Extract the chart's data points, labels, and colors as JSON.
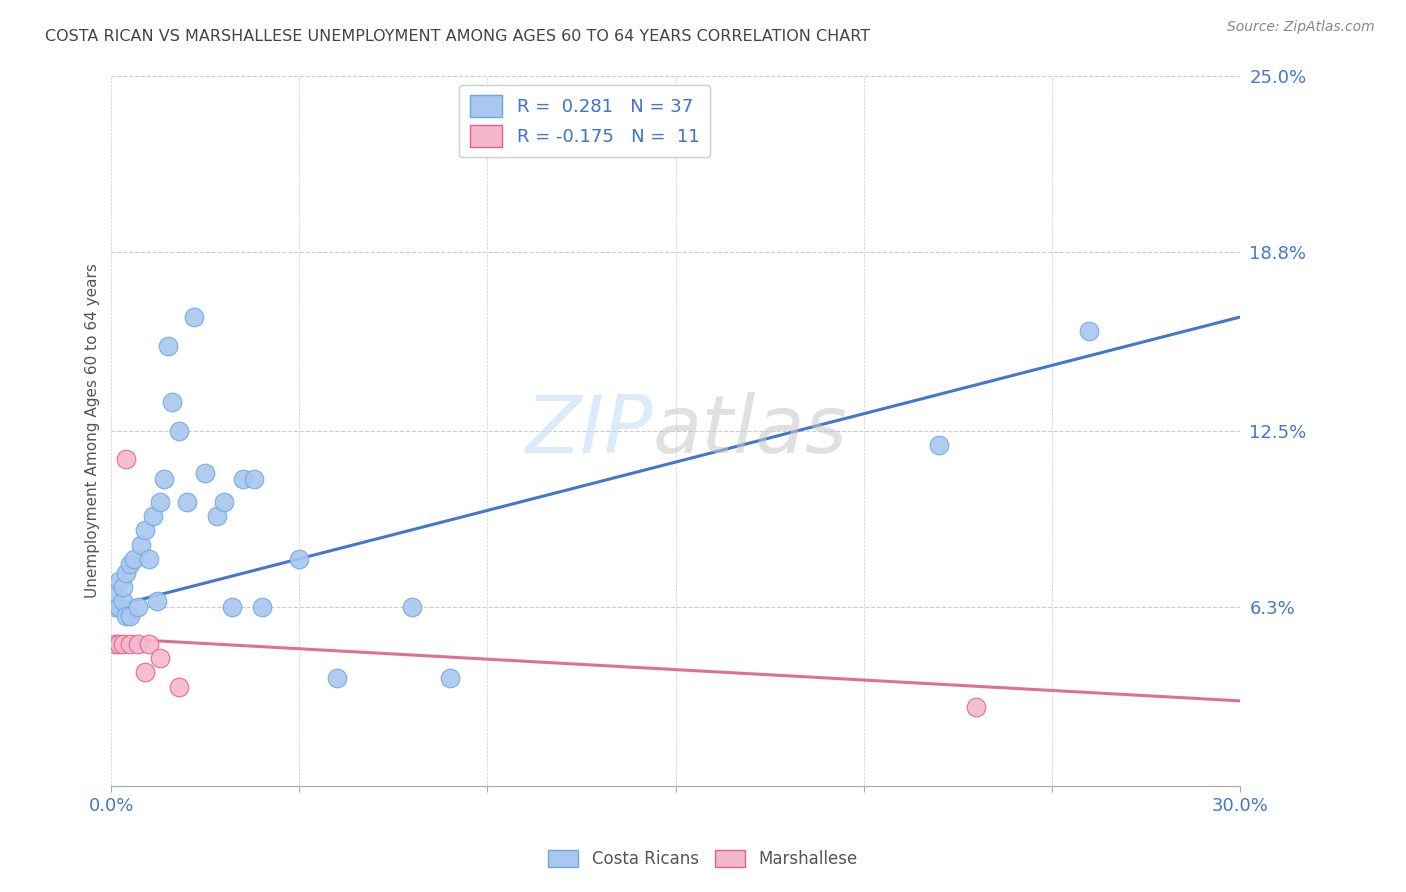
{
  "title": "COSTA RICAN VS MARSHALLESE UNEMPLOYMENT AMONG AGES 60 TO 64 YEARS CORRELATION CHART",
  "source": "Source: ZipAtlas.com",
  "ylabel": "Unemployment Among Ages 60 to 64 years",
  "xlim": [
    0,
    0.3
  ],
  "ylim": [
    0,
    0.25
  ],
  "xticks": [
    0.0,
    0.05,
    0.1,
    0.15,
    0.2,
    0.25,
    0.3
  ],
  "yticks": [
    0.0,
    0.063,
    0.125,
    0.188,
    0.25
  ],
  "ytick_labels": [
    "",
    "6.3%",
    "12.5%",
    "18.8%",
    "25.0%"
  ],
  "xtick_labels": [
    "0.0%",
    "",
    "",
    "",
    "",
    "",
    "30.0%"
  ],
  "blue_R": 0.281,
  "blue_N": 37,
  "pink_R": -0.175,
  "pink_N": 11,
  "blue_color": "#6fa8dc",
  "blue_fill": "#a8c8f0",
  "pink_color": "#e06090",
  "pink_fill": "#f4b8cc",
  "blue_line_color": "#4477cc",
  "pink_line_color": "#e07090",
  "costa_rican_x": [
    0.001,
    0.001,
    0.002,
    0.002,
    0.003,
    0.003,
    0.004,
    0.004,
    0.005,
    0.005,
    0.006,
    0.007,
    0.008,
    0.009,
    0.01,
    0.011,
    0.012,
    0.013,
    0.014,
    0.015,
    0.016,
    0.018,
    0.02,
    0.022,
    0.025,
    0.028,
    0.03,
    0.032,
    0.035,
    0.038,
    0.04,
    0.05,
    0.06,
    0.08,
    0.09,
    0.22,
    0.26
  ],
  "costa_rican_y": [
    0.063,
    0.068,
    0.063,
    0.072,
    0.065,
    0.07,
    0.06,
    0.075,
    0.06,
    0.078,
    0.08,
    0.063,
    0.085,
    0.09,
    0.08,
    0.095,
    0.065,
    0.1,
    0.108,
    0.155,
    0.135,
    0.125,
    0.1,
    0.165,
    0.11,
    0.095,
    0.1,
    0.063,
    0.108,
    0.108,
    0.063,
    0.08,
    0.038,
    0.063,
    0.038,
    0.12,
    0.16
  ],
  "marshallese_x": [
    0.001,
    0.002,
    0.003,
    0.004,
    0.005,
    0.007,
    0.009,
    0.01,
    0.013,
    0.018,
    0.23
  ],
  "marshallese_y": [
    0.05,
    0.05,
    0.05,
    0.115,
    0.05,
    0.05,
    0.04,
    0.05,
    0.045,
    0.035,
    0.028
  ],
  "blue_trend_x": [
    0.0,
    0.3
  ],
  "blue_trend_y": [
    0.063,
    0.165
  ],
  "pink_trend_x": [
    0.0,
    0.3
  ],
  "pink_trend_y": [
    0.052,
    0.03
  ]
}
